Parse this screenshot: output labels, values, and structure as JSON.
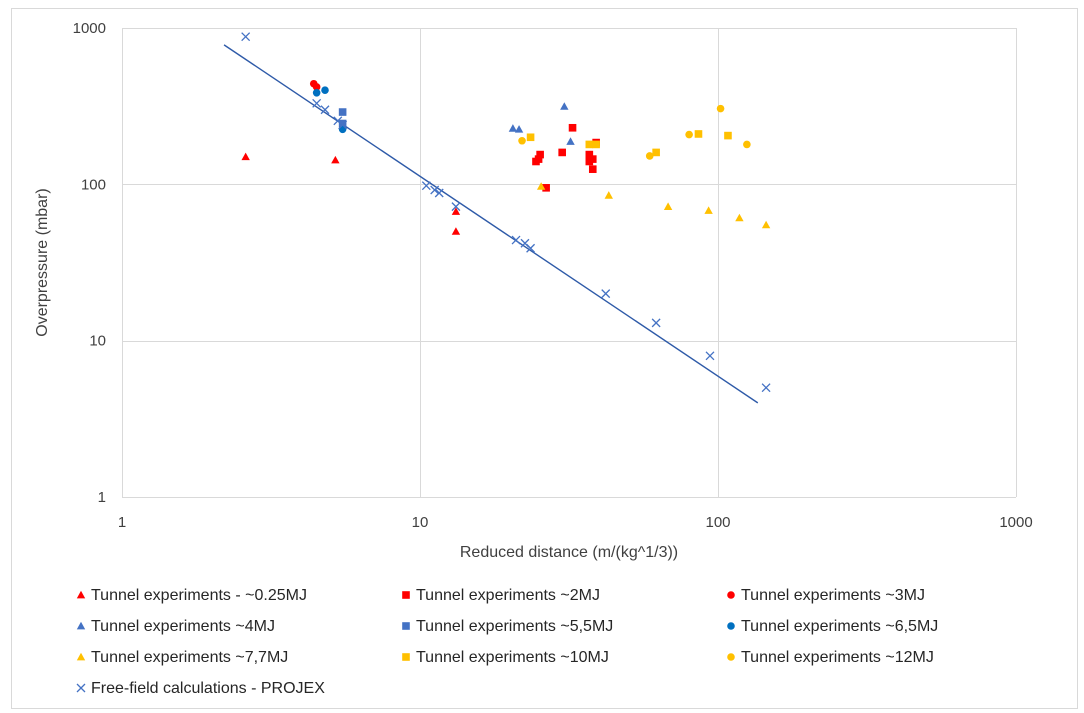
{
  "chart_data": {
    "type": "scatter",
    "xscale": "log",
    "yscale": "log",
    "xlim": [
      1,
      1000
    ],
    "ylim": [
      1,
      1000
    ],
    "xlabel": "Reduced distance (m/(kg^1/3))",
    "ylabel": "Overpressure (mbar)",
    "xticks": [
      1,
      10,
      100,
      1000
    ],
    "yticks": [
      1,
      10,
      100,
      1000
    ],
    "xtick_labels": [
      "1",
      "10",
      "100",
      "1000"
    ],
    "ytick_labels": [
      "1",
      "10",
      "100",
      "1000"
    ],
    "grid": true,
    "legend_position": "bottom",
    "series": [
      {
        "name": "Tunnel experiments - ~0.25MJ",
        "marker": "triangle",
        "color": "#ff0000",
        "points": [
          [
            2.6,
            150
          ],
          [
            5.2,
            143
          ],
          [
            13.2,
            67
          ],
          [
            13.2,
            50
          ]
        ]
      },
      {
        "name": "Tunnel experiments ~2MJ",
        "marker": "square",
        "color": "#ff0000",
        "points": [
          [
            24.5,
            140
          ],
          [
            25.3,
            155
          ],
          [
            25,
            145
          ],
          [
            26.5,
            95
          ],
          [
            30,
            160
          ],
          [
            32.5,
            230
          ],
          [
            37,
            140
          ],
          [
            37,
            155
          ],
          [
            38,
            145
          ],
          [
            38,
            125
          ],
          [
            39,
            185
          ]
        ]
      },
      {
        "name": "Tunnel experiments ~3MJ",
        "marker": "circle",
        "color": "#ff0000",
        "points": [
          [
            4.4,
            440
          ],
          [
            4.5,
            420
          ]
        ]
      },
      {
        "name": "Tunnel experiments ~4MJ",
        "marker": "triangle",
        "color": "#4472c4",
        "points": [
          [
            20.5,
            228
          ],
          [
            21.5,
            225
          ],
          [
            30.5,
            315
          ],
          [
            32,
            188
          ]
        ]
      },
      {
        "name": "Tunnel experiments ~5,5MJ",
        "marker": "square",
        "color": "#4472c4",
        "points": [
          [
            5.5,
            290
          ],
          [
            5.5,
            245
          ]
        ]
      },
      {
        "name": "Tunnel experiments ~6,5MJ",
        "marker": "circle",
        "color": "#0070c0",
        "points": [
          [
            4.5,
            385
          ],
          [
            4.8,
            400
          ],
          [
            5.5,
            225
          ]
        ]
      },
      {
        "name": "Tunnel experiments ~7,7MJ",
        "marker": "triangle",
        "color": "#ffc000",
        "points": [
          [
            25.5,
            97
          ],
          [
            43,
            85
          ],
          [
            68,
            72
          ],
          [
            93,
            68
          ],
          [
            118,
            61
          ],
          [
            145,
            55
          ]
        ]
      },
      {
        "name": "Tunnel experiments ~10MJ",
        "marker": "square",
        "color": "#ffc000",
        "points": [
          [
            23.5,
            200
          ],
          [
            37,
            180
          ],
          [
            39,
            180
          ],
          [
            62,
            160
          ],
          [
            86,
            210
          ],
          [
            108,
            205
          ]
        ]
      },
      {
        "name": "Tunnel experiments ~12MJ",
        "marker": "circle",
        "color": "#ffc000",
        "points": [
          [
            22,
            190
          ],
          [
            59,
            152
          ],
          [
            80,
            208
          ],
          [
            102,
            305
          ],
          [
            125,
            180
          ]
        ]
      },
      {
        "name": "Free-field calculations - PROJEX",
        "marker": "x",
        "color": "#4472c4",
        "points": [
          [
            2.6,
            880
          ],
          [
            4.5,
            330
          ],
          [
            4.8,
            300
          ],
          [
            5.3,
            255
          ],
          [
            5.5,
            240
          ],
          [
            10.5,
            98
          ],
          [
            11.2,
            92
          ],
          [
            11.6,
            88
          ],
          [
            13.2,
            72
          ],
          [
            21,
            44
          ],
          [
            22.5,
            42
          ],
          [
            23.5,
            39
          ],
          [
            42,
            20
          ],
          [
            62,
            13
          ],
          [
            94,
            8
          ],
          [
            145,
            5
          ]
        ],
        "trendline": [
          [
            2.2,
            780
          ],
          [
            136,
            4
          ]
        ]
      }
    ]
  }
}
